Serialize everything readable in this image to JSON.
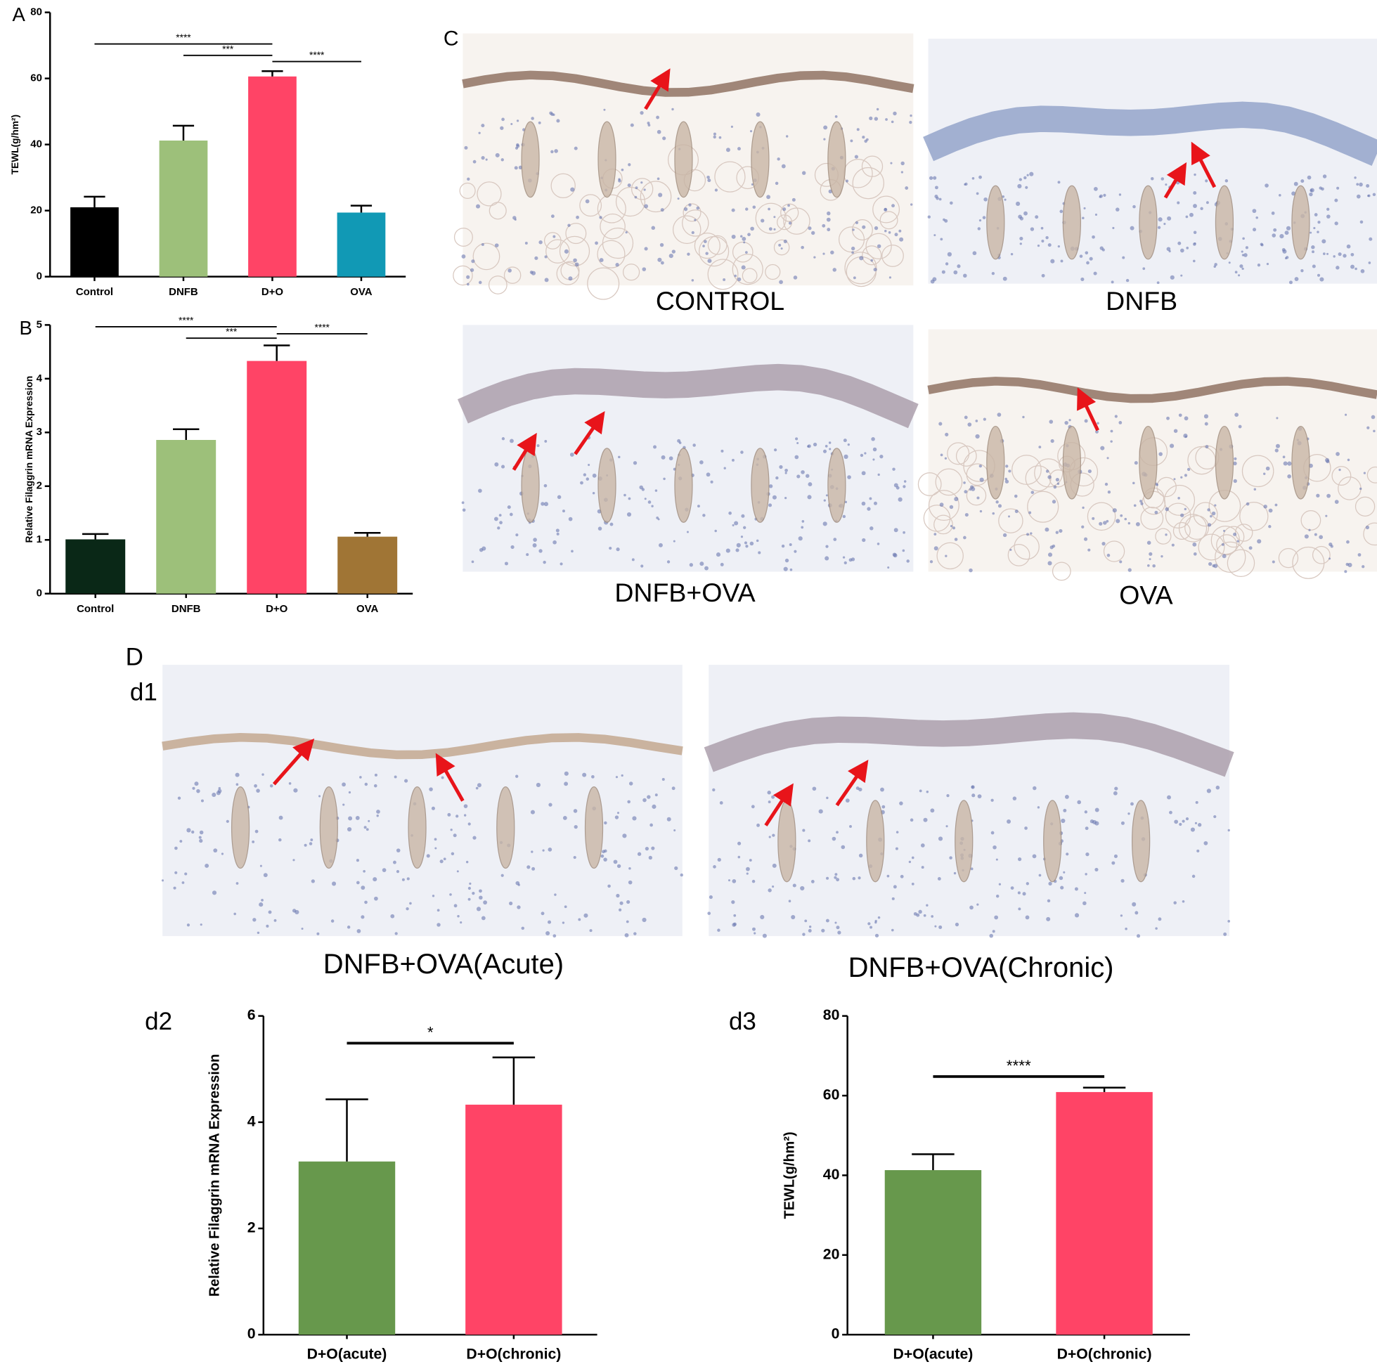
{
  "chart_data": [
    {
      "type": "bar",
      "ylabel": "TEWL(g/hm²)",
      "categories": [
        "Control",
        "DNFB",
        "D+O",
        "OVA"
      ],
      "values": [
        21,
        41.2,
        60.6,
        19.4
      ],
      "errors": [
        3.2,
        4.5,
        1.6,
        2.1
      ],
      "colors": [
        "#000000",
        "#9dc07a",
        "#ff4466",
        "#1199b5"
      ],
      "ylim": [
        0,
        80
      ],
      "yticks": [
        0,
        20,
        40,
        60,
        80
      ],
      "brackets": [
        {
          "label": "****",
          "between": [
            "Control",
            "D+O"
          ]
        },
        {
          "label": "***",
          "between": [
            "DNFB",
            "D+O"
          ]
        },
        {
          "label": "****",
          "between": [
            "D+O",
            "OVA"
          ]
        }
      ]
    },
    {
      "type": "bar",
      "ylabel": "Relative Filaggrin mRNA Expression",
      "categories": [
        "Control",
        "DNFB",
        "D+O",
        "OVA"
      ],
      "values": [
        1.01,
        2.86,
        4.33,
        1.06
      ],
      "errors": [
        0.1,
        0.2,
        0.29,
        0.07
      ],
      "colors": [
        "#0a2817",
        "#9dc07a",
        "#ff4466",
        "#a07535"
      ],
      "ylim": [
        0,
        5
      ],
      "yticks": [
        0,
        1,
        2,
        3,
        4,
        5
      ],
      "brackets": [
        {
          "label": "****",
          "between": [
            "Control",
            "D+O"
          ]
        },
        {
          "label": "***",
          "between": [
            "DNFB",
            "D+O"
          ]
        },
        {
          "label": "****",
          "between": [
            "D+O",
            "OVA"
          ]
        }
      ]
    },
    {
      "type": "bar",
      "ylabel": "Relative Filaggrin mRNA Expression",
      "categories": [
        "D+O(acute)",
        "D+O(chronic)"
      ],
      "values": [
        3.26,
        4.33
      ],
      "errors": [
        1.17,
        0.89
      ],
      "colors": [
        "#67984c",
        "#ff4466"
      ],
      "ylim": [
        0,
        6
      ],
      "yticks": [
        0,
        2,
        4,
        6
      ],
      "brackets": [
        {
          "label": "*",
          "between": [
            "D+O(acute)",
            "D+O(chronic)"
          ]
        }
      ]
    },
    {
      "type": "bar",
      "ylabel": "TEWL(g/hm²)",
      "categories": [
        "D+O(acute)",
        "D+O(chronic)"
      ],
      "values": [
        41.3,
        60.9
      ],
      "errors": [
        4,
        1.1
      ],
      "colors": [
        "#67984c",
        "#ff4466"
      ],
      "ylim": [
        0,
        80
      ],
      "yticks": [
        0,
        20,
        40,
        60,
        80
      ],
      "brackets": [
        {
          "label": "****",
          "between": [
            "D+O(acute)",
            "D+O(chronic)"
          ]
        }
      ]
    }
  ],
  "panel_labels": [
    "A",
    "B",
    "C",
    "D",
    "d1",
    "d2",
    "d3"
  ],
  "images": [
    {
      "caption": "CONTROL"
    },
    {
      "caption": "DNFB"
    },
    {
      "caption": "DNFB+OVA"
    },
    {
      "caption": "OVA"
    },
    {
      "caption": "DNFB+OVA(Acute)"
    },
    {
      "caption": "DNFB+OVA(Chronic)"
    }
  ]
}
